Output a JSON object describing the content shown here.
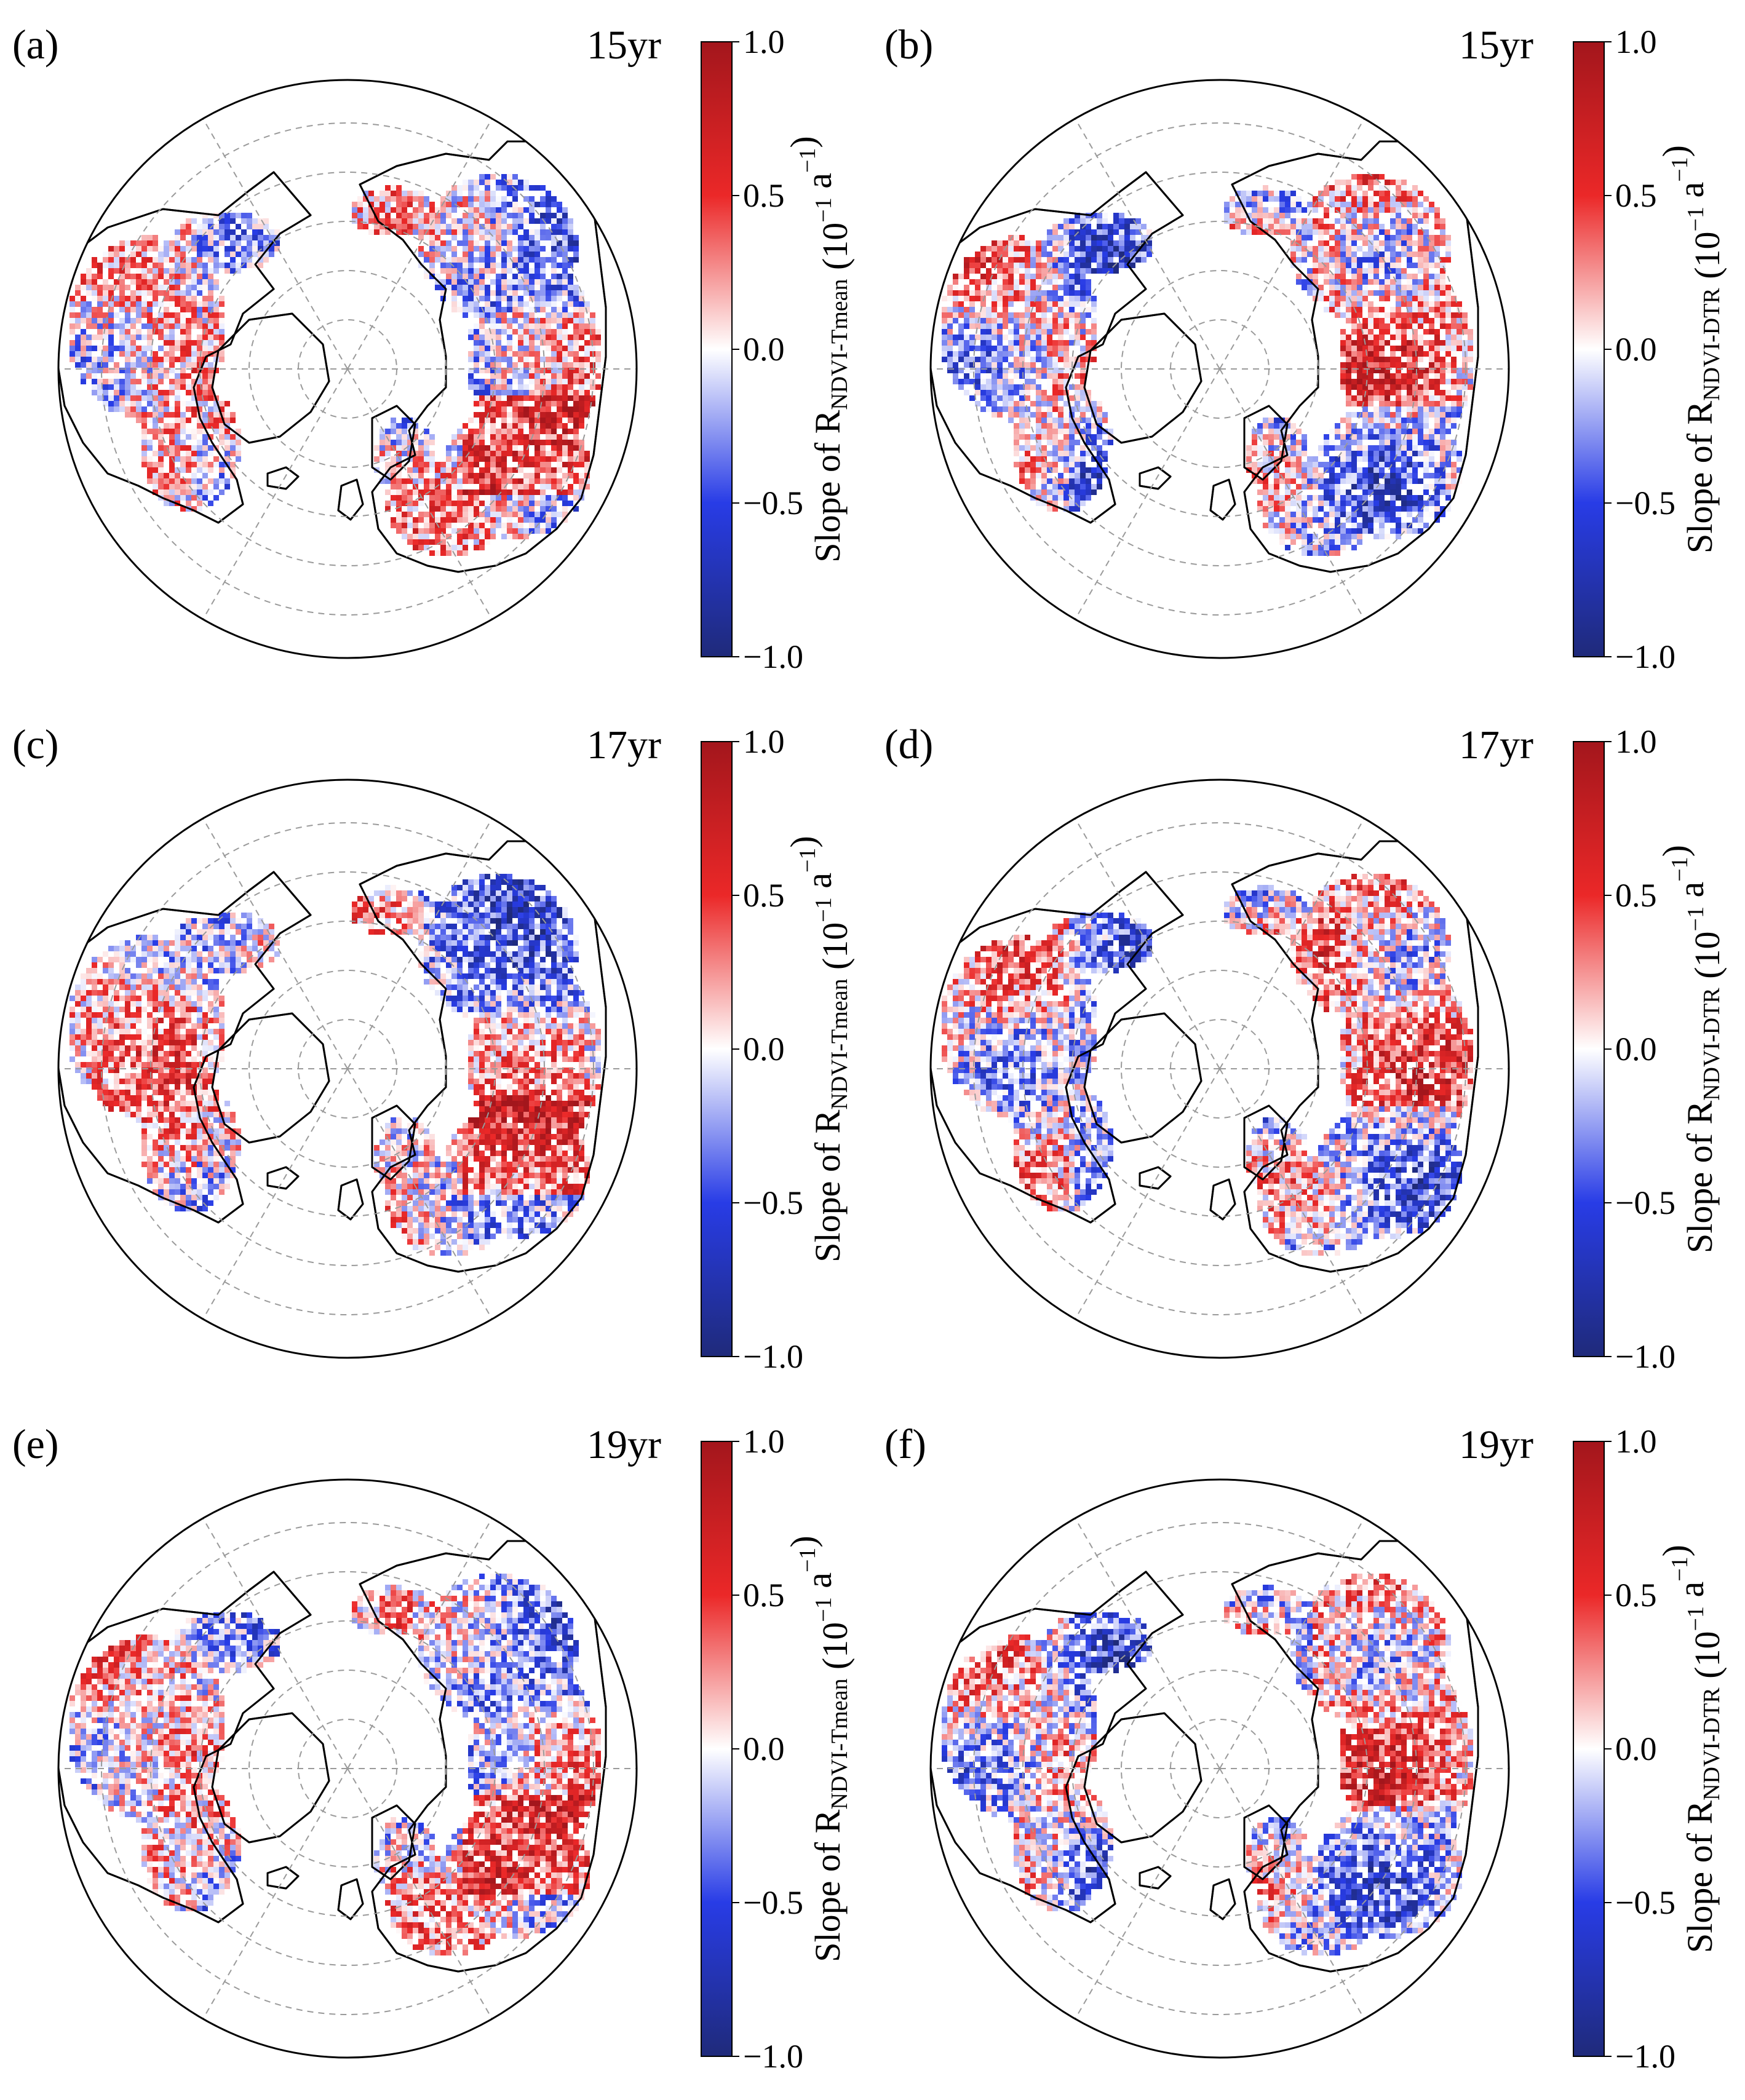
{
  "figure": {
    "colorscale": {
      "min": -1.0,
      "max": 1.0,
      "low": "#1f2a7a",
      "mid": "#ffffff",
      "high": "#a3161c"
    },
    "panels": [
      {
        "id": "a",
        "label": "(a)",
        "period": "15yr",
        "variable": "Tmean",
        "cb_prefix": "Slope of R",
        "cb_sub": "NDVI-Tmean",
        "cb_unit": "(10",
        "cb_exp1": "−1",
        "cb_unit2": " a",
        "cb_exp2": "−1",
        "cb_close": ")",
        "ticks": [
          "1.0",
          "0.5",
          "0.0",
          "−0.5",
          "−1.0"
        ],
        "seed": 11
      },
      {
        "id": "b",
        "label": "(b)",
        "period": "15yr",
        "variable": "DTR",
        "cb_prefix": "Slope of R",
        "cb_sub": "NDVI-DTR",
        "cb_unit": "(10",
        "cb_exp1": "−1",
        "cb_unit2": " a",
        "cb_exp2": "−1",
        "cb_close": ")",
        "ticks": [
          "1.0",
          "0.5",
          "0.0",
          "−0.5",
          "−1.0"
        ],
        "seed": 23
      },
      {
        "id": "c",
        "label": "(c)",
        "period": "17yr",
        "variable": "Tmean",
        "cb_prefix": "Slope of R",
        "cb_sub": "NDVI-Tmean",
        "cb_unit": "(10",
        "cb_exp1": "−1",
        "cb_unit2": " a",
        "cb_exp2": "−1",
        "cb_close": ")",
        "ticks": [
          "1.0",
          "0.5",
          "0.0",
          "−0.5",
          "−1.0"
        ],
        "seed": 37
      },
      {
        "id": "d",
        "label": "(d)",
        "period": "17yr",
        "variable": "DTR",
        "cb_prefix": "Slope of R",
        "cb_sub": "NDVI-DTR",
        "cb_unit": "(10",
        "cb_exp1": "−1",
        "cb_unit2": " a",
        "cb_exp2": "−1",
        "cb_close": ")",
        "ticks": [
          "1.0",
          "0.5",
          "0.0",
          "−0.5",
          "−1.0"
        ],
        "seed": 41
      },
      {
        "id": "e",
        "label": "(e)",
        "period": "19yr",
        "variable": "Tmean",
        "cb_prefix": "Slope of R",
        "cb_sub": "NDVI-Tmean",
        "cb_unit": "(10",
        "cb_exp1": "−1",
        "cb_unit2": " a",
        "cb_exp2": "−1",
        "cb_close": ")",
        "ticks": [
          "1.0",
          "0.5",
          "0.0",
          "−0.5",
          "−1.0"
        ],
        "seed": 53
      },
      {
        "id": "f",
        "label": "(f)",
        "period": "19yr",
        "variable": "DTR",
        "cb_prefix": "Slope of R",
        "cb_sub": "NDVI-DTR",
        "cb_unit": "(10",
        "cb_exp1": "−1",
        "cb_unit2": " a",
        "cb_exp2": "−1",
        "cb_close": ")",
        "ticks": [
          "1.0",
          "0.5",
          "0.0",
          "−0.5",
          "−1.0"
        ],
        "seed": 67
      }
    ]
  }
}
